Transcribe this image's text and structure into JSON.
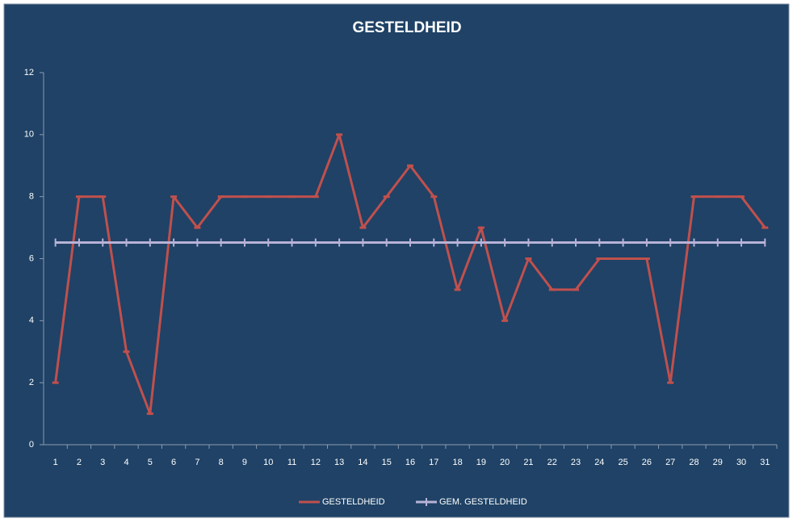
{
  "chart_data": {
    "type": "line",
    "title": "GESTELDHEID",
    "categories": [
      "1",
      "2",
      "3",
      "4",
      "5",
      "6",
      "7",
      "8",
      "9",
      "10",
      "11",
      "12",
      "13",
      "14",
      "15",
      "16",
      "17",
      "18",
      "19",
      "20",
      "21",
      "22",
      "23",
      "24",
      "25",
      "26",
      "27",
      "28",
      "29",
      "30",
      "31"
    ],
    "series": [
      {
        "name": "GESTELDHEID",
        "color": "#c0504d",
        "values": [
          2,
          8,
          8,
          3,
          1,
          8,
          7,
          8,
          8,
          8,
          8,
          8,
          10,
          7,
          8,
          9,
          8,
          5,
          7,
          4,
          6,
          5,
          5,
          6,
          6,
          6,
          2,
          8,
          8,
          8,
          7
        ]
      },
      {
        "name": "GEM. GESTELDHEID",
        "color": "#b8b2d8",
        "values": [
          6.52,
          6.52,
          6.52,
          6.52,
          6.52,
          6.52,
          6.52,
          6.52,
          6.52,
          6.52,
          6.52,
          6.52,
          6.52,
          6.52,
          6.52,
          6.52,
          6.52,
          6.52,
          6.52,
          6.52,
          6.52,
          6.52,
          6.52,
          6.52,
          6.52,
          6.52,
          6.52,
          6.52,
          6.52,
          6.52,
          6.52
        ]
      }
    ],
    "ylim": [
      0,
      12
    ],
    "yticks": [
      0,
      2,
      4,
      6,
      8,
      10,
      12
    ],
    "legend": "bottom"
  }
}
